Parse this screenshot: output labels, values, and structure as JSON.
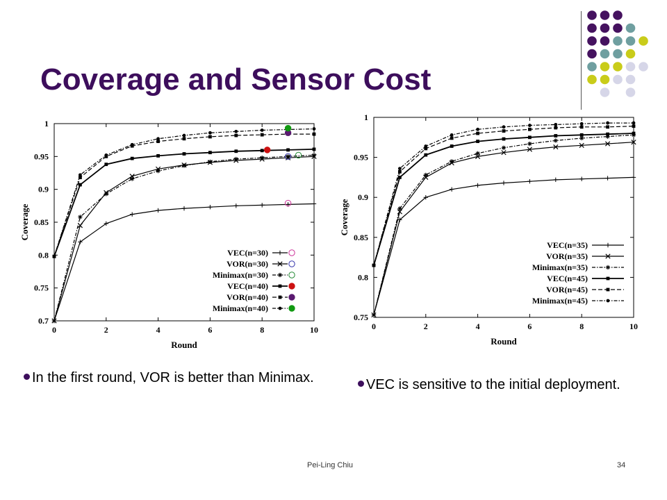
{
  "slide": {
    "title": "Coverage and Sensor Cost",
    "bullets": [
      "In the first round, VOR is better than Minimax.",
      "VEC is sensitive to the initial deployment."
    ],
    "footer_author": "Pei-Ling Chiu",
    "page_number": "34",
    "colors": {
      "title": "#3d0e5c",
      "purple": "#45125f",
      "teal": "#6f9fa0",
      "lime": "#c9cc1a",
      "lavender": "#d6d6e8"
    },
    "decoration_dots": [
      [
        "purple",
        "purple",
        "purple",
        "",
        "",
        ""
      ],
      [
        "purple",
        "purple",
        "purple",
        "teal",
        "",
        ""
      ],
      [
        "purple",
        "purple",
        "teal",
        "teal",
        "lime",
        ""
      ],
      [
        "purple",
        "teal",
        "teal",
        "lime",
        "",
        ""
      ],
      [
        "teal",
        "lime",
        "lime",
        "lavender",
        "lavender",
        ""
      ],
      [
        "lime",
        "lime",
        "lavender",
        "lavender",
        "",
        ""
      ],
      [
        "",
        "lavender",
        "",
        "lavender",
        "",
        ""
      ]
    ]
  },
  "chart_data": [
    {
      "type": "line",
      "xlabel": "Round",
      "ylabel": "Coverage",
      "xlim": [
        0,
        10
      ],
      "ylim": [
        0.7,
        1.0
      ],
      "x_ticks": [
        "0",
        "2",
        "4",
        "6",
        "8",
        "10"
      ],
      "y_ticks": [
        "0.7",
        "0.75",
        "0.8",
        "0.85",
        "0.9",
        "0.95",
        "1"
      ],
      "legend_position": "bottom-right",
      "grid": false,
      "x": [
        0,
        1,
        2,
        3,
        4,
        5,
        6,
        7,
        8,
        9,
        10
      ],
      "series": [
        {
          "name": "VEC(n=30)",
          "marker": "plus",
          "dash": "solid",
          "marker_color": "#cc3399",
          "values": [
            0.7,
            0.82,
            0.848,
            0.862,
            0.868,
            0.871,
            0.873,
            0.875,
            0.876,
            0.877,
            0.878
          ]
        },
        {
          "name": "VOR(n=30)",
          "marker": "cross",
          "dash": "solid",
          "marker_color": "#3333aa",
          "values": [
            0.7,
            0.845,
            0.895,
            0.92,
            0.931,
            0.937,
            0.941,
            0.944,
            0.946,
            0.948,
            0.95
          ]
        },
        {
          "name": "Minimax(n=30)",
          "marker": "star",
          "dash": "dashdot",
          "marker_color": "#228833",
          "values": [
            0.7,
            0.858,
            0.893,
            0.916,
            0.928,
            0.936,
            0.942,
            0.946,
            0.948,
            0.95,
            0.952
          ]
        },
        {
          "name": "VEC(n=40)",
          "marker": "square",
          "dash": "solid",
          "marker_color": "#cc1111",
          "values": [
            0.798,
            0.907,
            0.938,
            0.947,
            0.951,
            0.954,
            0.956,
            0.958,
            0.959,
            0.96,
            0.961
          ]
        },
        {
          "name": "VOR(n=40)",
          "marker": "square",
          "dash": "dash",
          "marker_color": "#5a1a70",
          "values": [
            0.798,
            0.918,
            0.95,
            0.966,
            0.973,
            0.977,
            0.98,
            0.982,
            0.983,
            0.984,
            0.984
          ]
        },
        {
          "name": "Minimax(n=40)",
          "marker": "dot",
          "dash": "dashdot",
          "marker_color": "#119911",
          "values": [
            0.798,
            0.922,
            0.952,
            0.968,
            0.977,
            0.982,
            0.986,
            0.988,
            0.99,
            0.991,
            0.992
          ]
        }
      ]
    },
    {
      "type": "line",
      "xlabel": "Round",
      "ylabel": "Coverage",
      "xlim": [
        0,
        10
      ],
      "ylim": [
        0.75,
        1.0
      ],
      "x_ticks": [
        "0",
        "2",
        "4",
        "6",
        "8",
        "10"
      ],
      "y_ticks": [
        "0.75",
        "0.8",
        "0.85",
        "0.9",
        "0.95",
        "1"
      ],
      "legend_position": "bottom-right",
      "grid": false,
      "x": [
        0,
        1,
        2,
        3,
        4,
        5,
        6,
        7,
        8,
        9,
        10
      ],
      "series": [
        {
          "name": "VEC(n=35)",
          "marker": "plus",
          "dash": "solid",
          "values": [
            0.753,
            0.872,
            0.9,
            0.91,
            0.915,
            0.918,
            0.92,
            0.922,
            0.923,
            0.924,
            0.925
          ]
        },
        {
          "name": "VOR(n=35)",
          "marker": "cross",
          "dash": "solid",
          "values": [
            0.753,
            0.882,
            0.925,
            0.943,
            0.951,
            0.956,
            0.96,
            0.963,
            0.965,
            0.967,
            0.969
          ]
        },
        {
          "name": "Minimax(n=35)",
          "marker": "star",
          "dash": "dashdot",
          "values": [
            0.753,
            0.886,
            0.928,
            0.945,
            0.955,
            0.962,
            0.967,
            0.971,
            0.974,
            0.976,
            0.978
          ]
        },
        {
          "name": "VEC(n=45)",
          "marker": "square",
          "dash": "solid",
          "values": [
            0.815,
            0.925,
            0.953,
            0.964,
            0.97,
            0.973,
            0.975,
            0.977,
            0.978,
            0.979,
            0.98
          ]
        },
        {
          "name": "VOR(n=45)",
          "marker": "square",
          "dash": "dash",
          "values": [
            0.815,
            0.932,
            0.961,
            0.974,
            0.98,
            0.983,
            0.985,
            0.987,
            0.988,
            0.988,
            0.989
          ]
        },
        {
          "name": "Minimax(n=45)",
          "marker": "dot",
          "dash": "dashdot",
          "values": [
            0.815,
            0.936,
            0.964,
            0.978,
            0.985,
            0.988,
            0.99,
            0.991,
            0.992,
            0.993,
            0.993
          ]
        }
      ]
    }
  ]
}
